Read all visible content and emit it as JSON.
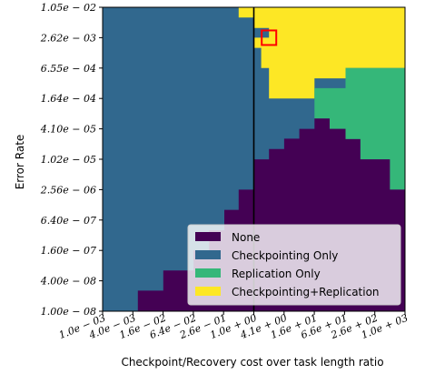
{
  "chart_data": {
    "type": "heatmap",
    "xlabel": "Checkpoint/Recovery cost over task length ratio",
    "ylabel": "Error Rate",
    "x_scale": "log",
    "y_scale": "log",
    "x_ticks": [
      "1.0e-03",
      "4.0e-03",
      "1.6e-02",
      "6.4e-02",
      "2.6e-01",
      "1.0e+00",
      "4.1e+00",
      "1.6e+01",
      "6.6e+01",
      "2.6e+02",
      "1.0e+03"
    ],
    "y_ticks": [
      "1.05e-02",
      "2.62e-03",
      "6.55e-04",
      "1.64e-04",
      "4.10e-05",
      "1.02e-05",
      "2.56e-06",
      "6.40e-07",
      "1.60e-07",
      "4.00e-08",
      "1.00e-08"
    ],
    "categories": [
      "None",
      "Checkpointing Only",
      "Replication Only",
      "Checkpointing+Replication"
    ],
    "colors": [
      "#440154",
      "#31688e",
      "#35b779",
      "#fde725"
    ],
    "legend_position": "lower-right",
    "vertical_line_x": "1.0e+00",
    "highlight_marker": {
      "x": "2.0e+00",
      "y": "2.62e-03",
      "color": "#ff0000"
    },
    "regions": [
      {
        "category": "Checkpointing+Replication",
        "boundary": [
          [
            "1.0e+00",
            "1.05e-02"
          ],
          [
            "1.0e+03",
            "1.05e-02"
          ],
          [
            "1.0e+03",
            "6.55e-04"
          ],
          [
            "6.6e+01",
            "6.55e-04"
          ],
          [
            "6.6e+01",
            "4.10e-04"
          ],
          [
            "1.6e+01",
            "4.10e-04"
          ],
          [
            "1.6e+01",
            "2.62e-04"
          ],
          [
            "1.6e+01",
            "1.64e-04"
          ],
          [
            "2.0e+00",
            "1.64e-04"
          ],
          [
            "2.0e+00",
            "6.55e-04"
          ],
          [
            "1.4e+00",
            "6.55e-04"
          ],
          [
            "1.4e+00",
            "1.65e-03"
          ],
          [
            "1.0e+00",
            "1.65e-03"
          ],
          [
            "1.0e+00",
            "2.62e-03"
          ],
          [
            "2.0e+00",
            "2.62e-03"
          ],
          [
            "2.0e+00",
            "4.10e-03"
          ],
          [
            "1.0e+00",
            "4.10e-03"
          ]
        ]
      },
      {
        "category": "Checkpointing+Replication",
        "boundary": [
          [
            "5.0e-01",
            "1.05e-02"
          ],
          [
            "1.0e+00",
            "1.05e-02"
          ],
          [
            "1.0e+00",
            "6.60e-03"
          ],
          [
            "5.0e-01",
            "6.60e-03"
          ]
        ]
      },
      {
        "category": "Replication Only",
        "boundary": [
          [
            "1.0e+03",
            "6.55e-04"
          ],
          [
            "1.0e+03",
            "2.56e-06"
          ],
          [
            "5.0e+02",
            "2.56e-06"
          ],
          [
            "5.0e+02",
            "1.02e-05"
          ],
          [
            "1.3e+02",
            "1.02e-05"
          ],
          [
            "1.3e+02",
            "2.56e-05"
          ],
          [
            "6.6e+01",
            "2.56e-05"
          ],
          [
            "6.6e+01",
            "4.10e-05"
          ],
          [
            "3.2e+01",
            "4.10e-05"
          ],
          [
            "3.2e+01",
            "6.55e-05"
          ],
          [
            "1.6e+01",
            "6.55e-05"
          ],
          [
            "1.6e+01",
            "1.64e-04"
          ],
          [
            "1.6e+01",
            "2.62e-04"
          ],
          [
            "6.6e+01",
            "2.62e-04"
          ],
          [
            "6.6e+01",
            "4.10e-04"
          ],
          [
            "6.6e+01",
            "6.55e-04"
          ]
        ]
      },
      {
        "category": "None",
        "boundary": [
          [
            "1.0e+00",
            "1.02e-05"
          ],
          [
            "2.0e+00",
            "1.02e-05"
          ],
          [
            "2.0e+00",
            "1.64e-05"
          ],
          [
            "4.0e+00",
            "1.64e-05"
          ],
          [
            "4.0e+00",
            "2.62e-05"
          ],
          [
            "8.0e+00",
            "2.62e-05"
          ],
          [
            "8.0e+00",
            "4.10e-05"
          ],
          [
            "1.6e+01",
            "4.10e-05"
          ],
          [
            "1.6e+01",
            "6.55e-05"
          ],
          [
            "3.2e+01",
            "6.55e-05"
          ],
          [
            "3.2e+01",
            "4.10e-05"
          ],
          [
            "6.6e+01",
            "4.10e-05"
          ],
          [
            "6.6e+01",
            "2.56e-05"
          ],
          [
            "1.3e+02",
            "2.56e-05"
          ],
          [
            "1.3e+02",
            "1.02e-05"
          ],
          [
            "5.0e+02",
            "1.02e-05"
          ],
          [
            "5.0e+02",
            "2.56e-06"
          ],
          [
            "1.0e+03",
            "2.56e-06"
          ],
          [
            "1.0e+03",
            "1.00e-08"
          ],
          [
            "5.0e-03",
            "1.00e-08"
          ],
          [
            "5.0e-03",
            "2.56e-08"
          ],
          [
            "1.6e-02",
            "2.56e-08"
          ],
          [
            "1.6e-02",
            "6.40e-08"
          ],
          [
            "6.4e-02",
            "6.40e-08"
          ],
          [
            "6.4e-02",
            "1.60e-07"
          ],
          [
            "1.3e-01",
            "1.60e-07"
          ],
          [
            "1.3e-01",
            "4.00e-07"
          ],
          [
            "2.6e-01",
            "4.00e-07"
          ],
          [
            "2.6e-01",
            "1.02e-06"
          ],
          [
            "5.0e-01",
            "1.02e-06"
          ],
          [
            "5.0e-01",
            "2.56e-06"
          ],
          [
            "1.0e+00",
            "2.56e-06"
          ]
        ]
      }
    ]
  }
}
